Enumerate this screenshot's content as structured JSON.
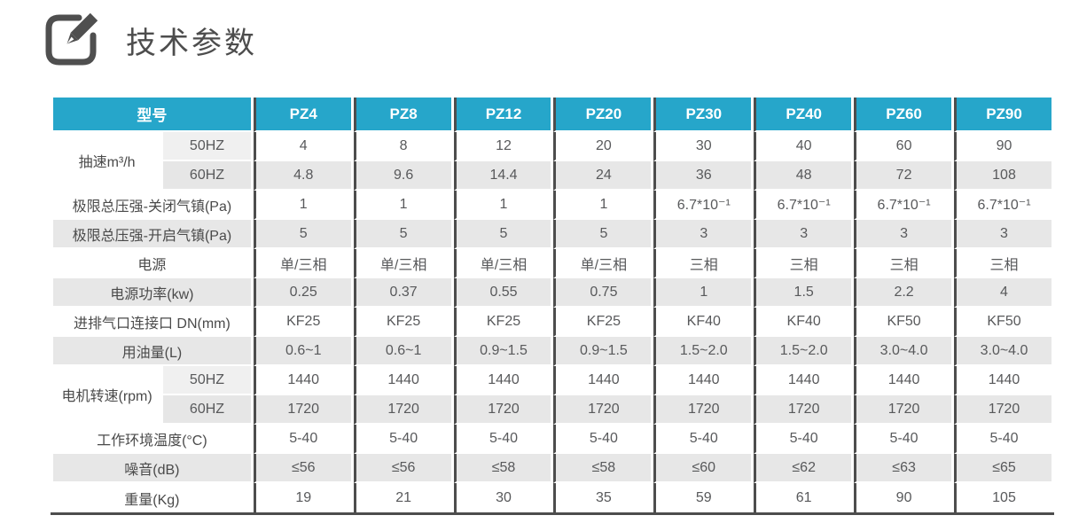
{
  "header": {
    "title": "技术参数",
    "icon": "edit-icon"
  },
  "colors": {
    "header_bg": "#26a6ca",
    "header_text": "#ffffff",
    "rule": "#4d4d4d",
    "row_alt_bg": "#e7e7e7",
    "label_group_bg": "#efefef",
    "title_text": "#4d4d4d",
    "cell_text": "#58595b"
  },
  "table": {
    "corner_label": "型号",
    "models": [
      "PZ4",
      "PZ8",
      "PZ12",
      "PZ20",
      "PZ30",
      "PZ40",
      "PZ60",
      "PZ90"
    ],
    "rows": [
      {
        "group": "抽速m³/h",
        "sub": "50HZ",
        "values": [
          "4",
          "8",
          "12",
          "20",
          "30",
          "40",
          "60",
          "90"
        ]
      },
      {
        "sub": "60HZ",
        "values": [
          "4.8",
          "9.6",
          "14.4",
          "24",
          "36",
          "48",
          "72",
          "108"
        ]
      },
      {
        "label": "极限总压强-关闭气镇(Pa)",
        "values": [
          "1",
          "1",
          "1",
          "1",
          "6.7*10⁻¹",
          "6.7*10⁻¹",
          "6.7*10⁻¹",
          "6.7*10⁻¹"
        ]
      },
      {
        "label": "极限总压强-开启气镇(Pa)",
        "values": [
          "5",
          "5",
          "5",
          "5",
          "3",
          "3",
          "3",
          "3"
        ]
      },
      {
        "label": "电源",
        "values": [
          "单/三相",
          "单/三相",
          "单/三相",
          "单/三相",
          "三相",
          "三相",
          "三相",
          "三相"
        ]
      },
      {
        "label": "电源功率(kw)",
        "values": [
          "0.25",
          "0.37",
          "0.55",
          "0.75",
          "1",
          "1.5",
          "2.2",
          "4"
        ]
      },
      {
        "label": "进排气口连接口 DN(mm)",
        "values": [
          "KF25",
          "KF25",
          "KF25",
          "KF25",
          "KF40",
          "KF40",
          "KF50",
          "KF50"
        ]
      },
      {
        "label": "用油量(L)",
        "values": [
          "0.6~1",
          "0.6~1",
          "0.9~1.5",
          "0.9~1.5",
          "1.5~2.0",
          "1.5~2.0",
          "3.0~4.0",
          "3.0~4.0"
        ]
      },
      {
        "group": "电机转速(rpm)",
        "sub": "50HZ",
        "values": [
          "1440",
          "1440",
          "1440",
          "1440",
          "1440",
          "1440",
          "1440",
          "1440"
        ]
      },
      {
        "sub": "60HZ",
        "values": [
          "1720",
          "1720",
          "1720",
          "1720",
          "1720",
          "1720",
          "1720",
          "1720"
        ]
      },
      {
        "label": "工作环境温度(°C)",
        "values": [
          "5-40",
          "5-40",
          "5-40",
          "5-40",
          "5-40",
          "5-40",
          "5-40",
          "5-40"
        ]
      },
      {
        "label": "噪音(dB)",
        "values": [
          "≤56",
          "≤56",
          "≤58",
          "≤58",
          "≤60",
          "≤62",
          "≤63",
          "≤65"
        ]
      },
      {
        "label": "重量(Kg)",
        "values": [
          "19",
          "21",
          "30",
          "35",
          "59",
          "61",
          "90",
          "105"
        ]
      }
    ]
  }
}
